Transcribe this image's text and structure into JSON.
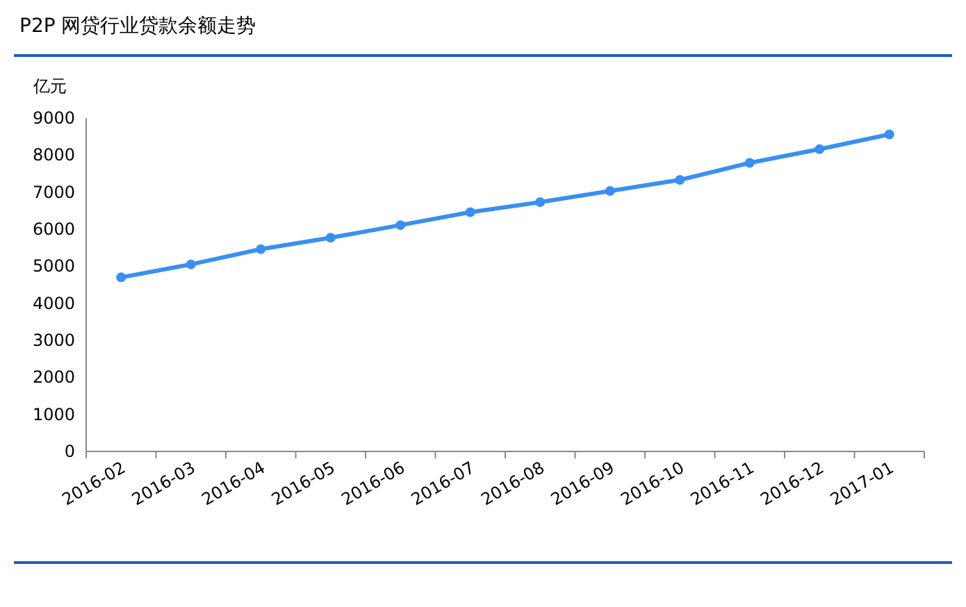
{
  "chart_data": {
    "type": "line",
    "title": "P2P 网贷行业贷款余额走势",
    "ylabel": "亿元",
    "categories": [
      "2016-02",
      "2016-03",
      "2016-04",
      "2016-05",
      "2016-06",
      "2016-07",
      "2016-08",
      "2016-09",
      "2016-10",
      "2016-11",
      "2016-12",
      "2017-01"
    ],
    "series": [
      {
        "color": "#3a8ff0",
        "values": [
          4700,
          5050,
          5460,
          5770,
          6110,
          6460,
          6730,
          7030,
          7330,
          7790,
          8160,
          8560
        ]
      }
    ],
    "ylim": [
      0,
      9000
    ],
    "yticks": [
      0,
      1000,
      2000,
      3000,
      4000,
      5000,
      6000,
      7000,
      8000,
      9000
    ],
    "marker": "circle",
    "line_style": "solid",
    "grid": false
  }
}
